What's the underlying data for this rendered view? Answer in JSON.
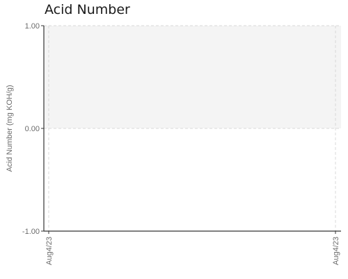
{
  "chart_data": {
    "type": "line",
    "title": "Acid Number",
    "ylabel": "Acid Number (mg KOH/g)",
    "xlabel": "",
    "ylim": [
      -1.0,
      1.0
    ],
    "y_ticks": [
      "1.00",
      "0.00",
      "-1.00"
    ],
    "y_tick_values": [
      1.0,
      0.0,
      -1.0
    ],
    "x_ticks": [
      "Aug4/23",
      "Aug4/23"
    ],
    "series": [],
    "shaded_band": {
      "from": 0.0,
      "to": 1.0,
      "color": "#f4f4f4"
    },
    "grid": true,
    "axis_color": "#333333",
    "grid_color": "#d8d8d8"
  }
}
